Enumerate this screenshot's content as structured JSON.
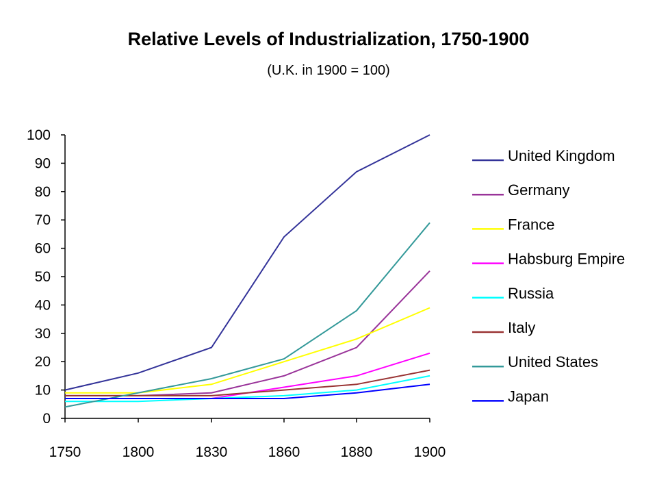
{
  "chart_data": {
    "type": "line",
    "title": "Relative Levels of Industrialization, 1750-1900",
    "subtitle": "(U.K. in 1900 = 100)",
    "xlabel": "",
    "ylabel": "",
    "categories": [
      "1750",
      "1800",
      "1830",
      "1860",
      "1880",
      "1900"
    ],
    "ylim": [
      0,
      100
    ],
    "yticks": [
      "0",
      "10",
      "20",
      "30",
      "40",
      "50",
      "60",
      "70",
      "80",
      "90",
      "100"
    ],
    "grid": false,
    "legend_position": "right",
    "series": [
      {
        "name": "United Kingdom",
        "color": "#333399",
        "values": [
          10,
          16,
          25,
          64,
          87,
          100
        ]
      },
      {
        "name": "Germany",
        "color": "#993399",
        "values": [
          8,
          8,
          9,
          15,
          25,
          52
        ]
      },
      {
        "name": "France",
        "color": "#ffff00",
        "values": [
          9,
          9,
          12,
          20,
          28,
          39
        ]
      },
      {
        "name": "Habsburg Empire",
        "color": "#ff00ff",
        "values": [
          7,
          7,
          7,
          11,
          15,
          23
        ]
      },
      {
        "name": "Russia",
        "color": "#00ffff",
        "values": [
          6,
          6,
          7,
          8,
          10,
          15
        ]
      },
      {
        "name": "Italy",
        "color": "#993333",
        "values": [
          8,
          8,
          8,
          10,
          12,
          17
        ]
      },
      {
        "name": "United States",
        "color": "#339999",
        "values": [
          4,
          9,
          14,
          21,
          38,
          69
        ]
      },
      {
        "name": "Japan",
        "color": "#0000ff",
        "values": [
          7,
          7,
          7,
          7,
          9,
          12
        ]
      }
    ]
  }
}
